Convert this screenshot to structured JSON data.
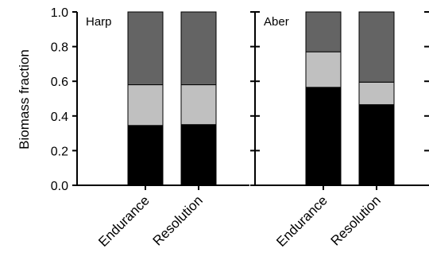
{
  "chart_data": {
    "type": "bar",
    "stacked": true,
    "ylabel": "Biomass fraction",
    "ylim": [
      0,
      1.0
    ],
    "yticks": [
      "0.0",
      "0.2",
      "0.4",
      "0.6",
      "0.8",
      "1.0"
    ],
    "grid": false,
    "panels": [
      {
        "label": "Harp",
        "categories": [
          "Endurance",
          "Resolution"
        ],
        "series": [
          {
            "color": "#000000",
            "values": [
              0.345,
              0.35
            ]
          },
          {
            "color": "#c0c0c0",
            "values": [
              0.235,
              0.23
            ]
          },
          {
            "color": "#646464",
            "values": [
              0.42,
              0.42
            ]
          }
        ]
      },
      {
        "label": "Aber",
        "categories": [
          "Endurance",
          "Resolution"
        ],
        "series": [
          {
            "color": "#000000",
            "values": [
              0.565,
              0.465
            ]
          },
          {
            "color": "#c0c0c0",
            "values": [
              0.205,
              0.13
            ]
          },
          {
            "color": "#646464",
            "values": [
              0.23,
              0.405
            ]
          }
        ]
      }
    ]
  }
}
